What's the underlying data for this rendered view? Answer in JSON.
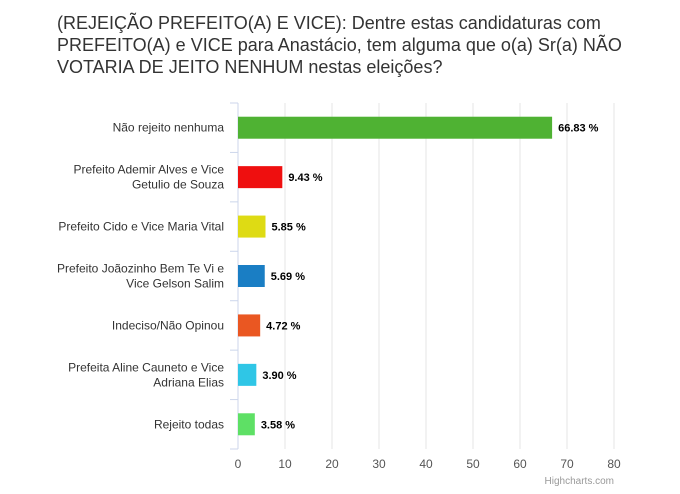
{
  "chart_data": {
    "type": "bar",
    "orientation": "horizontal",
    "title": "(REJEIÇÃO PREFEITO(A) E VICE): Dentre estas candidaturas com PREFEITO(A) e VICE para Anastácio, tem alguma que o(a) Sr(a) NÃO VOTARIA DE JEITO NENHUM nestas eleições?",
    "categories": [
      "Não rejeito nenhuma",
      "Prefeito Ademir Alves e Vice Getulio de Souza",
      "Prefeito Cido e Vice Maria Vital",
      "Prefeito Joãozinho Bem Te Vi e Vice Gelson Salim",
      "Indeciso/Não Opinou",
      "Prefeita Aline Cauneto e Vice Adriana Elias",
      "Rejeito todas"
    ],
    "category_lines": [
      [
        "Não rejeito nenhuma"
      ],
      [
        "Prefeito Ademir Alves e Vice",
        "Getulio de Souza"
      ],
      [
        "Prefeito Cido e Vice Maria Vital"
      ],
      [
        "Prefeito Joãozinho Bem Te Vi e",
        "Vice Gelson Salim"
      ],
      [
        "Indeciso/Não Opinou"
      ],
      [
        "Prefeita Aline Cauneto e Vice",
        "Adriana Elias"
      ],
      [
        "Rejeito todas"
      ]
    ],
    "values": [
      66.83,
      9.43,
      5.85,
      5.69,
      4.72,
      3.9,
      3.58
    ],
    "value_labels": [
      "66.83 %",
      "9.43 %",
      "5.85 %",
      "5.69 %",
      "4.72 %",
      "3.90 %",
      "3.58 %"
    ],
    "colors": [
      "#4fb233",
      "#ef0f0f",
      "#dedb14",
      "#1a7ec4",
      "#ea5722",
      "#2fc6e6",
      "#5ee065"
    ],
    "xlim": [
      0,
      80
    ],
    "xticks": [
      0,
      10,
      20,
      30,
      40,
      50,
      60,
      70,
      80
    ],
    "grid": true,
    "legend": "none",
    "xlabel": "",
    "ylabel": ""
  },
  "credits": "Highcharts.com"
}
